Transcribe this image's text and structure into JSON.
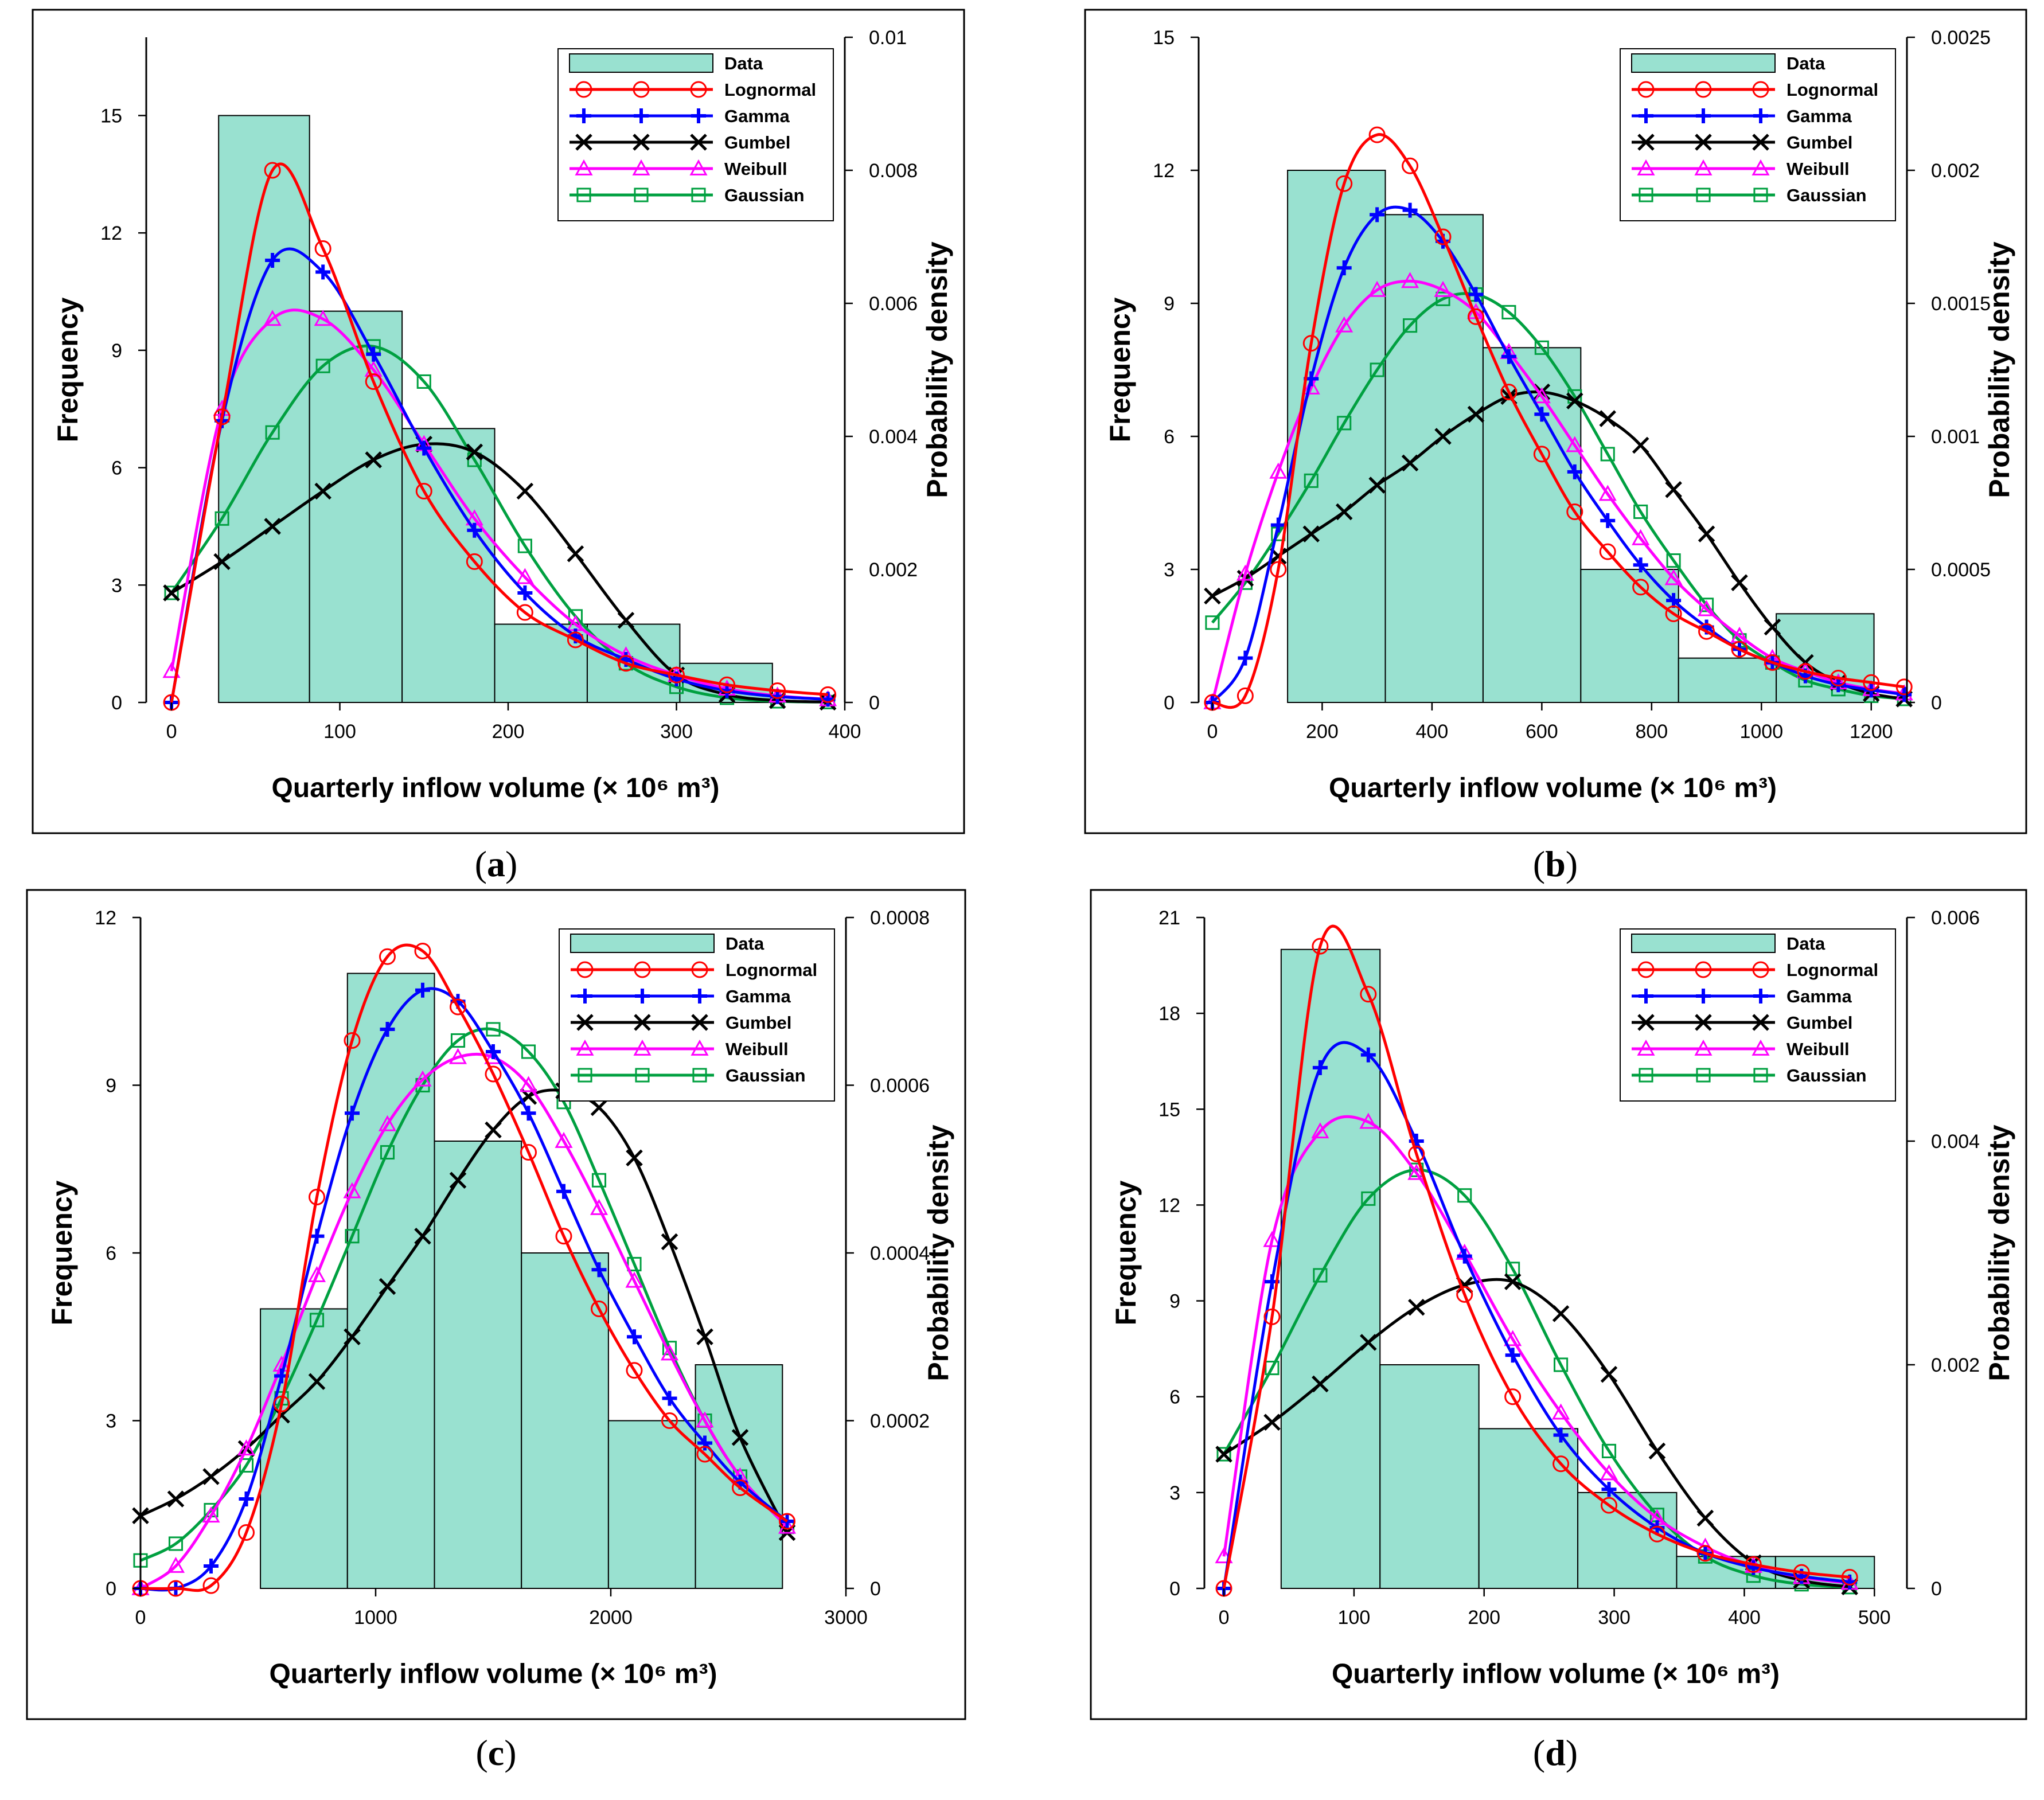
{
  "legend": {
    "data": "Data",
    "lognormal": "Lognormal",
    "gamma": "Gamma",
    "gumbel": "Gumbel",
    "weibull": "Weibull",
    "gaussian": "Gaussian"
  },
  "colors": {
    "bar_fill": "#99e1d0",
    "lognormal": "#ff0000",
    "gamma": "#0000ff",
    "gumbel": "#000000",
    "weibull": "#ff00ff",
    "gaussian": "#00a040"
  },
  "chart_data": [
    {
      "id": "a",
      "caption": "(a)",
      "type": "bar",
      "xlabel": "Quarterly inflow volume (× 10⁶ m³)",
      "ylabel": "Frequency",
      "y2label": "Probability density",
      "xlim": [
        -15,
        400
      ],
      "ylim": [
        0,
        17
      ],
      "y2lim": [
        0,
        0.01
      ],
      "xticks": [
        0,
        100,
        200,
        300,
        400
      ],
      "yticks": [
        0,
        3,
        6,
        9,
        12,
        15
      ],
      "y2ticks": [
        0,
        0.002,
        0.004,
        0.006,
        0.008,
        0.01
      ],
      "bins": [
        {
          "start": 28,
          "end": 82,
          "count": 15
        },
        {
          "start": 82,
          "end": 137,
          "count": 10
        },
        {
          "start": 137,
          "end": 192,
          "count": 7
        },
        {
          "start": 192,
          "end": 247,
          "count": 2
        },
        {
          "start": 247,
          "end": 302,
          "count": 2
        },
        {
          "start": 302,
          "end": 357,
          "count": 1
        }
      ],
      "curves": [
        {
          "name": "lognormal",
          "x": [
            0,
            30,
            60,
            90,
            120,
            150,
            180,
            210,
            240,
            270,
            300,
            330,
            360,
            390
          ],
          "y": [
            0,
            7.3,
            13.6,
            11.6,
            8.2,
            5.4,
            3.6,
            2.3,
            1.6,
            1.0,
            0.7,
            0.45,
            0.3,
            0.2
          ]
        },
        {
          "name": "gamma",
          "x": [
            0,
            30,
            60,
            90,
            120,
            150,
            180,
            210,
            240,
            270,
            300,
            330,
            360,
            390
          ],
          "y": [
            0,
            7.2,
            11.3,
            11.0,
            8.9,
            6.5,
            4.4,
            2.8,
            1.7,
            1.1,
            0.6,
            0.3,
            0.15,
            0.08
          ]
        },
        {
          "name": "gumbel",
          "x": [
            0,
            30,
            60,
            90,
            120,
            150,
            180,
            210,
            240,
            270,
            300,
            330,
            360,
            390
          ],
          "y": [
            2.8,
            3.6,
            4.5,
            5.4,
            6.2,
            6.6,
            6.4,
            5.4,
            3.8,
            2.1,
            0.7,
            0.2,
            0.05,
            0.01
          ]
        },
        {
          "name": "weibull",
          "x": [
            0,
            30,
            60,
            90,
            120,
            150,
            180,
            210,
            240,
            270,
            300,
            330,
            360,
            390
          ],
          "y": [
            0.8,
            7.5,
            9.8,
            9.8,
            8.5,
            6.6,
            4.7,
            3.2,
            2.0,
            1.2,
            0.7,
            0.35,
            0.17,
            0.08
          ]
        },
        {
          "name": "gaussian",
          "x": [
            0,
            30,
            60,
            90,
            120,
            150,
            180,
            210,
            240,
            270,
            300,
            330,
            360,
            390
          ],
          "y": [
            2.8,
            4.7,
            6.9,
            8.6,
            9.1,
            8.2,
            6.2,
            4.0,
            2.2,
            1.0,
            0.4,
            0.12,
            0.03,
            0.01
          ]
        }
      ]
    },
    {
      "id": "b",
      "caption": "(b)",
      "type": "bar",
      "xlabel": "Quarterly inflow volume (× 10⁶ m³)",
      "ylabel": "Frequency",
      "y2label": "Probability density",
      "xlim": [
        -25,
        1265
      ],
      "ylim": [
        0,
        15
      ],
      "y2lim": [
        0,
        0.0025
      ],
      "xticks": [
        0,
        200,
        400,
        600,
        800,
        1000,
        1200
      ],
      "yticks": [
        0,
        3,
        6,
        9,
        12,
        15
      ],
      "y2ticks": [
        0,
        0.0005,
        0.001,
        0.0015,
        0.002,
        0.0025
      ],
      "bins": [
        {
          "start": 137,
          "end": 315,
          "count": 12
        },
        {
          "start": 315,
          "end": 493,
          "count": 11
        },
        {
          "start": 493,
          "end": 671,
          "count": 8
        },
        {
          "start": 671,
          "end": 849,
          "count": 3
        },
        {
          "start": 849,
          "end": 1027,
          "count": 1
        },
        {
          "start": 1027,
          "end": 1205,
          "count": 2
        }
      ],
      "curves": [
        {
          "name": "lognormal",
          "x": [
            0,
            60,
            120,
            180,
            240,
            300,
            360,
            420,
            480,
            540,
            600,
            660,
            720,
            780,
            840,
            900,
            960,
            1020,
            1080,
            1140,
            1200,
            1260
          ],
          "y": [
            0,
            0.15,
            3.0,
            8.1,
            11.7,
            12.8,
            12.1,
            10.5,
            8.7,
            7.0,
            5.6,
            4.3,
            3.4,
            2.6,
            2.0,
            1.6,
            1.2,
            0.9,
            0.7,
            0.55,
            0.45,
            0.35
          ]
        },
        {
          "name": "gamma",
          "x": [
            0,
            60,
            120,
            180,
            240,
            300,
            360,
            420,
            480,
            540,
            600,
            660,
            720,
            780,
            840,
            900,
            960,
            1020,
            1080,
            1140,
            1200,
            1260
          ],
          "y": [
            0,
            1.0,
            4.0,
            7.3,
            9.8,
            11.0,
            11.1,
            10.4,
            9.2,
            7.8,
            6.5,
            5.2,
            4.1,
            3.1,
            2.3,
            1.7,
            1.2,
            0.9,
            0.6,
            0.4,
            0.28,
            0.18
          ]
        },
        {
          "name": "gumbel",
          "x": [
            0,
            60,
            120,
            180,
            240,
            300,
            360,
            420,
            480,
            540,
            600,
            660,
            720,
            780,
            840,
            900,
            960,
            1020,
            1080,
            1140,
            1200,
            1260
          ],
          "y": [
            2.4,
            2.8,
            3.3,
            3.8,
            4.3,
            4.9,
            5.4,
            6.0,
            6.5,
            6.9,
            7.0,
            6.8,
            6.4,
            5.8,
            4.8,
            3.8,
            2.7,
            1.7,
            0.9,
            0.45,
            0.2,
            0.08
          ]
        },
        {
          "name": "weibull",
          "x": [
            0,
            60,
            120,
            180,
            240,
            300,
            360,
            420,
            480,
            540,
            600,
            660,
            720,
            780,
            840,
            900,
            960,
            1020,
            1080,
            1140,
            1200,
            1260
          ],
          "y": [
            0,
            2.9,
            5.2,
            7.1,
            8.5,
            9.3,
            9.5,
            9.3,
            8.8,
            7.9,
            6.9,
            5.8,
            4.7,
            3.7,
            2.8,
            2.1,
            1.5,
            1.0,
            0.7,
            0.45,
            0.3,
            0.2
          ]
        },
        {
          "name": "gaussian",
          "x": [
            0,
            60,
            120,
            180,
            240,
            300,
            360,
            420,
            480,
            540,
            600,
            660,
            720,
            780,
            840,
            900,
            960,
            1020,
            1080,
            1140,
            1200,
            1260
          ],
          "y": [
            1.8,
            2.7,
            3.8,
            5.0,
            6.3,
            7.5,
            8.5,
            9.1,
            9.2,
            8.8,
            8.0,
            6.9,
            5.6,
            4.3,
            3.2,
            2.2,
            1.4,
            0.9,
            0.5,
            0.3,
            0.15,
            0.08
          ]
        }
      ]
    },
    {
      "id": "c",
      "caption": "(c)",
      "type": "bar",
      "xlabel": "Quarterly inflow volume (× 10⁶ m³)",
      "ylabel": "Frequency",
      "y2label": "Probability density",
      "xlim": [
        0,
        3000
      ],
      "ylim": [
        0,
        12
      ],
      "y2lim": [
        0,
        0.0008
      ],
      "xticks": [
        0,
        1000,
        2000,
        3000
      ],
      "yticks": [
        0,
        3,
        6,
        9,
        12
      ],
      "y2ticks": [
        0,
        0.0002,
        0.0004,
        0.0006,
        0.0008
      ],
      "bins": [
        {
          "start": 510,
          "end": 880,
          "count": 5
        },
        {
          "start": 880,
          "end": 1250,
          "count": 11
        },
        {
          "start": 1250,
          "end": 1620,
          "count": 8
        },
        {
          "start": 1620,
          "end": 1990,
          "count": 6
        },
        {
          "start": 1990,
          "end": 2360,
          "count": 3
        },
        {
          "start": 2360,
          "end": 2730,
          "count": 4
        }
      ],
      "curves": [
        {
          "name": "lognormal",
          "x": [
            0,
            150,
            300,
            450,
            600,
            750,
            900,
            1050,
            1200,
            1350,
            1500,
            1650,
            1800,
            1950,
            2100,
            2250,
            2400,
            2550,
            2750
          ],
          "y": [
            0,
            0,
            0.05,
            1.0,
            3.3,
            7.0,
            9.8,
            11.3,
            11.4,
            10.4,
            9.2,
            7.8,
            6.3,
            5.0,
            3.9,
            3.0,
            2.4,
            1.8,
            1.2
          ]
        },
        {
          "name": "gamma",
          "x": [
            0,
            150,
            300,
            450,
            600,
            750,
            900,
            1050,
            1200,
            1350,
            1500,
            1650,
            1800,
            1950,
            2100,
            2250,
            2400,
            2550,
            2750
          ],
          "y": [
            0,
            0,
            0.4,
            1.6,
            3.8,
            6.3,
            8.5,
            10.0,
            10.7,
            10.5,
            9.6,
            8.5,
            7.1,
            5.7,
            4.5,
            3.4,
            2.6,
            1.9,
            1.2
          ]
        },
        {
          "name": "gumbel",
          "x": [
            0,
            150,
            300,
            450,
            600,
            750,
            900,
            1050,
            1200,
            1350,
            1500,
            1650,
            1800,
            1950,
            2100,
            2250,
            2400,
            2550,
            2750
          ],
          "y": [
            1.3,
            1.6,
            2.0,
            2.5,
            3.1,
            3.7,
            4.5,
            5.4,
            6.3,
            7.3,
            8.2,
            8.8,
            8.9,
            8.6,
            7.7,
            6.2,
            4.5,
            2.7,
            1.0
          ]
        },
        {
          "name": "weibull",
          "x": [
            0,
            150,
            300,
            450,
            600,
            750,
            900,
            1050,
            1200,
            1350,
            1500,
            1650,
            1800,
            1950,
            2100,
            2250,
            2400,
            2550,
            2750
          ],
          "y": [
            0,
            0.4,
            1.3,
            2.5,
            4.0,
            5.6,
            7.1,
            8.3,
            9.1,
            9.5,
            9.5,
            9.0,
            8.0,
            6.8,
            5.5,
            4.2,
            3.0,
            2.0,
            1.1
          ]
        },
        {
          "name": "gaussian",
          "x": [
            0,
            150,
            300,
            450,
            600,
            750,
            900,
            1050,
            1200,
            1350,
            1500,
            1650,
            1800,
            1950,
            2100,
            2250,
            2400,
            2550,
            2750
          ],
          "y": [
            0.5,
            0.8,
            1.4,
            2.2,
            3.4,
            4.8,
            6.3,
            7.8,
            9.0,
            9.8,
            10.0,
            9.6,
            8.7,
            7.3,
            5.8,
            4.3,
            3.0,
            2.0,
            1.1
          ]
        }
      ]
    },
    {
      "id": "d",
      "caption": "(d)",
      "type": "bar",
      "xlabel": "Quarterly inflow volume (× 10⁶ m³)",
      "ylabel": "Frequency",
      "y2label": "Probability density",
      "xlim": [
        -15,
        525
      ],
      "ylim": [
        0,
        21
      ],
      "y2lim": [
        0,
        0.006
      ],
      "xticks": [
        0,
        100,
        200,
        300,
        400,
        500
      ],
      "yticks": [
        0,
        3,
        6,
        9,
        12,
        15,
        18,
        21
      ],
      "y2ticks": [
        0,
        0.002,
        0.004,
        0.006
      ],
      "bins": [
        {
          "start": 44,
          "end": 120,
          "count": 20
        },
        {
          "start": 120,
          "end": 196,
          "count": 7
        },
        {
          "start": 196,
          "end": 272,
          "count": 5
        },
        {
          "start": 272,
          "end": 348,
          "count": 3
        },
        {
          "start": 348,
          "end": 424,
          "count": 1
        },
        {
          "start": 424,
          "end": 500,
          "count": 1
        }
      ],
      "curves": [
        {
          "name": "lognormal",
          "x": [
            0,
            37,
            74,
            111,
            148,
            185,
            222,
            259,
            296,
            333,
            370,
            407,
            444,
            481
          ],
          "y": [
            0,
            8.5,
            20.1,
            18.6,
            13.6,
            9.2,
            6.0,
            3.9,
            2.6,
            1.7,
            1.1,
            0.75,
            0.5,
            0.35
          ]
        },
        {
          "name": "gamma",
          "x": [
            0,
            37,
            74,
            111,
            148,
            185,
            222,
            259,
            296,
            333,
            370,
            407,
            444,
            481
          ],
          "y": [
            0,
            9.6,
            16.3,
            16.7,
            14.0,
            10.4,
            7.3,
            4.8,
            3.1,
            1.9,
            1.1,
            0.65,
            0.38,
            0.2
          ]
        },
        {
          "name": "gumbel",
          "x": [
            0,
            37,
            74,
            111,
            148,
            185,
            222,
            259,
            296,
            333,
            370,
            407,
            444,
            481
          ],
          "y": [
            4.2,
            5.2,
            6.4,
            7.7,
            8.8,
            9.5,
            9.6,
            8.6,
            6.7,
            4.3,
            2.2,
            0.8,
            0.25,
            0.05
          ]
        },
        {
          "name": "weibull",
          "x": [
            0,
            37,
            74,
            111,
            148,
            185,
            222,
            259,
            296,
            333,
            370,
            407,
            444,
            481
          ],
          "y": [
            1.0,
            10.9,
            14.3,
            14.6,
            13.0,
            10.5,
            7.8,
            5.5,
            3.6,
            2.2,
            1.3,
            0.7,
            0.35,
            0.17
          ]
        },
        {
          "name": "gaussian",
          "x": [
            0,
            37,
            74,
            111,
            148,
            185,
            222,
            259,
            296,
            333,
            370,
            407,
            444,
            481
          ],
          "y": [
            4.2,
            6.9,
            9.8,
            12.2,
            13.1,
            12.3,
            10.0,
            7.0,
            4.3,
            2.3,
            1.0,
            0.4,
            0.13,
            0.04
          ]
        }
      ]
    }
  ]
}
